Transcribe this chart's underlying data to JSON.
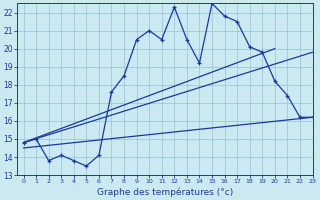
{
  "title": "Graphe des températures (°c)",
  "bg_color": "#cce8f0",
  "line_color": "#1a3a9c",
  "grid_color": "#99ccd9",
  "xlim": [
    -0.5,
    23
  ],
  "ylim": [
    13,
    22.5
  ],
  "xticks": [
    0,
    1,
    2,
    3,
    4,
    5,
    6,
    7,
    8,
    9,
    10,
    11,
    12,
    13,
    14,
    15,
    16,
    17,
    18,
    19,
    20,
    21,
    22,
    23
  ],
  "yticks": [
    13,
    14,
    15,
    16,
    17,
    18,
    19,
    20,
    21,
    22
  ],
  "temp_x": [
    0,
    1,
    2,
    3,
    4,
    5,
    6,
    7,
    8,
    9,
    10,
    11,
    12,
    13,
    14,
    15,
    16,
    17,
    18,
    19,
    20,
    21,
    22,
    23
  ],
  "temp_y": [
    14.8,
    15.0,
    13.8,
    14.1,
    13.8,
    13.5,
    14.1,
    17.6,
    18.5,
    20.5,
    21.0,
    20.5,
    22.3,
    20.5,
    19.2,
    22.5,
    21.8,
    21.5,
    20.1,
    19.8,
    18.2,
    17.4,
    16.2,
    16.2
  ],
  "trend1_x": [
    0,
    20
  ],
  "trend1_y": [
    14.8,
    20.0
  ],
  "trend2_x": [
    0,
    23
  ],
  "trend2_y": [
    14.8,
    19.8
  ],
  "trend3_x": [
    0,
    23
  ],
  "trend3_y": [
    14.5,
    16.2
  ]
}
